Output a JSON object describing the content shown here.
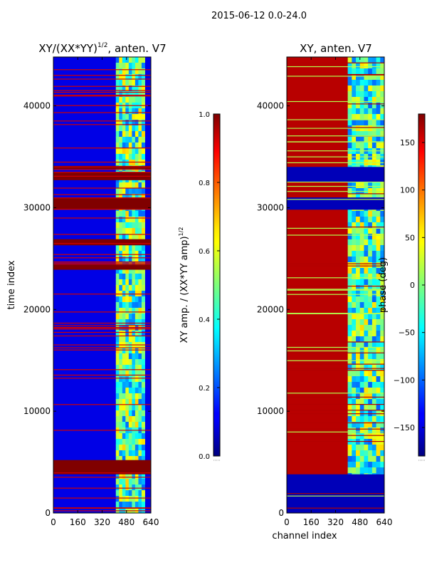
{
  "figure": {
    "suptitle": "2015-06-12 0.0-24.0"
  },
  "chart_data": [
    {
      "type": "heatmap",
      "title": "XY/(XX*YY)",
      "title_power": "1/2",
      "title_suffix": ", anten. V7",
      "xlabel": "",
      "ylabel": "time index",
      "xlim": [
        0,
        640
      ],
      "ylim": [
        0,
        44800
      ],
      "xticks": [
        0,
        160,
        320,
        480,
        640
      ],
      "yticks": [
        0,
        10000,
        20000,
        30000,
        40000
      ],
      "colorscale": "jet",
      "colorbar": {
        "label": "XY amp. / (XX*YY amp)",
        "label_power": "1/2",
        "range": [
          0,
          1
        ],
        "ticks": [
          "0.0",
          "0.2",
          "0.4",
          "0.6",
          "0.8",
          "1.0"
        ]
      },
      "background_value": 0.1,
      "flagged_value": 1.0,
      "band_x": [
        410,
        600
      ],
      "band_value": 0.45,
      "flagged_time_ranges": [
        [
          3800,
          5200
        ],
        [
          23900,
          24400
        ],
        [
          26300,
          26900
        ],
        [
          29800,
          31000
        ],
        [
          32700,
          33500
        ],
        [
          33800,
          34100
        ]
      ]
    },
    {
      "type": "heatmap",
      "title": "XY, anten. V7",
      "xlabel": "channel index",
      "ylabel": "",
      "xlim": [
        0,
        640
      ],
      "ylim": [
        0,
        44800
      ],
      "xticks": [
        0,
        160,
        320,
        480,
        640
      ],
      "yticks": [
        0,
        10000,
        20000,
        30000,
        40000
      ],
      "colorscale": "jet",
      "colorbar": {
        "label": "phase (deg)",
        "range": [
          -180,
          180
        ],
        "ticks": [
          "150",
          "100",
          "50",
          "0",
          "−50",
          "−100",
          "−150"
        ],
        "tick_values": [
          150,
          100,
          50,
          0,
          -50,
          -100,
          -150
        ]
      },
      "background_value": 160,
      "band_x": [
        400,
        640
      ],
      "band_value": -20,
      "low_time_ranges": [
        [
          0,
          3800
        ],
        [
          29800,
          31000
        ],
        [
          32500,
          34000
        ]
      ]
    }
  ]
}
